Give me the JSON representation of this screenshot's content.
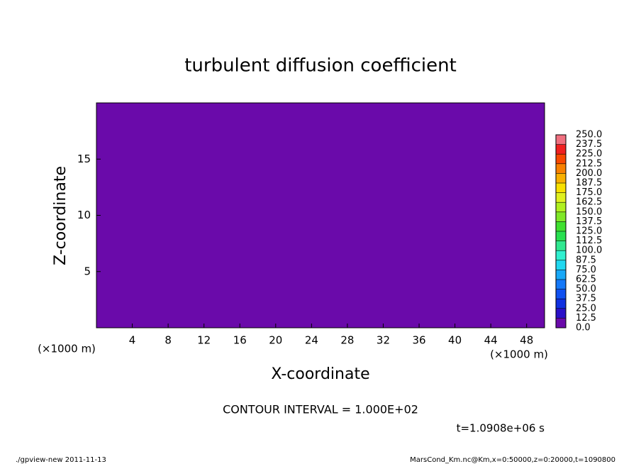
{
  "chart_data": {
    "type": "contour",
    "title": "turbulent diffusion coefficient",
    "xlabel": "X-coordinate",
    "ylabel": "Z-coordinate",
    "xunit": "(×1000 m)",
    "xlim": [
      0,
      50
    ],
    "ylim": [
      0,
      20
    ],
    "xticks": [
      4,
      8,
      12,
      16,
      20,
      24,
      28,
      32,
      36,
      40,
      44,
      48
    ],
    "yticks": [
      5,
      10,
      15
    ],
    "contour_interval": "CONTOUR INTERVAL = 1.000E+02",
    "time_label": "t=1.0908e+06 s",
    "footer_left": "./gpview-new   2011-11-13",
    "footer_right": "MarsCond_Km.nc@Km,x=0:50000,z=0:20000,t=1090800",
    "colorbar": {
      "ticks": [
        {
          "value": 0,
          "label": "0.0"
        },
        {
          "value": 12.5,
          "label": "12.5"
        },
        {
          "value": 25,
          "label": "25.0"
        },
        {
          "value": 37.5,
          "label": "37.5"
        },
        {
          "value": 50,
          "label": "50.0"
        },
        {
          "value": 62.5,
          "label": "62.5"
        },
        {
          "value": 75,
          "label": "75.0"
        },
        {
          "value": 87.5,
          "label": "87.5"
        },
        {
          "value": 100,
          "label": "100.0"
        },
        {
          "value": 112.5,
          "label": "112.5"
        },
        {
          "value": 125,
          "label": "125.0"
        },
        {
          "value": 137.5,
          "label": "137.5"
        },
        {
          "value": 150,
          "label": "150.0"
        },
        {
          "value": 162.5,
          "label": "162.5"
        },
        {
          "value": 175,
          "label": "175.0"
        },
        {
          "value": 187.5,
          "label": "187.5"
        },
        {
          "value": 200,
          "label": "200.0"
        },
        {
          "value": 212.5,
          "label": "212.5"
        },
        {
          "value": 225,
          "label": "225.0"
        },
        {
          "value": 237.5,
          "label": "237.5"
        },
        {
          "value": 250,
          "label": "250.0"
        }
      ],
      "colors": [
        "#6a0aaa",
        "#2a10c8",
        "#1030e0",
        "#1050f0",
        "#1478f8",
        "#18a8f8",
        "#20d8f0",
        "#30f0d0",
        "#30e890",
        "#28e050",
        "#40e030",
        "#80e828",
        "#b0f020",
        "#e0f020",
        "#f8e000",
        "#f8b000",
        "#f88000",
        "#f84800",
        "#f02020",
        "#f07080"
      ]
    }
  }
}
